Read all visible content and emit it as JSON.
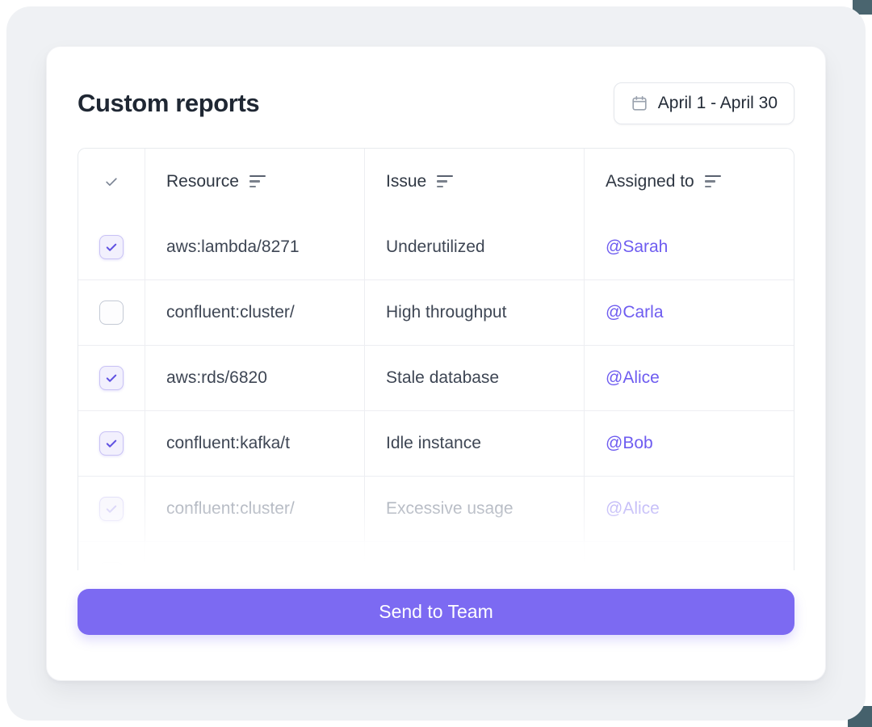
{
  "card": {
    "title": "Custom reports",
    "date_range": {
      "label": "April 1 - April 30",
      "icon": "calendar-icon"
    },
    "table": {
      "columns": [
        {
          "label": "",
          "icon": "check-icon"
        },
        {
          "label": "Resource",
          "icon": "sort-icon"
        },
        {
          "label": "Issue",
          "icon": "sort-icon"
        },
        {
          "label": "Assigned to",
          "icon": "sort-icon"
        }
      ],
      "rows": [
        {
          "checked": true,
          "resource": "aws:lambda/8271",
          "issue": "Underutilized",
          "assignee": "@Sarah",
          "faded": false
        },
        {
          "checked": false,
          "resource": "confluent:cluster/",
          "issue": "High throughput",
          "assignee": "@Carla",
          "faded": false
        },
        {
          "checked": true,
          "resource": "aws:rds/6820",
          "issue": "Stale database",
          "assignee": "@Alice",
          "faded": false
        },
        {
          "checked": true,
          "resource": "confluent:kafka/t",
          "issue": "Idle instance",
          "assignee": "@Bob",
          "faded": false
        },
        {
          "checked": true,
          "resource": "confluent:cluster/",
          "issue": "Excessive usage",
          "assignee": "@Alice",
          "faded": true
        }
      ],
      "partial_row_visible": true
    },
    "send_button": {
      "label": "Send to Team"
    }
  },
  "colors": {
    "accent_button": "#7c6af2",
    "mention": "#6e5cf0",
    "checkbox_check": "#6052e2",
    "checkbox_checked_border": "#c9c2f5",
    "checkbox_checked_bg": "#f2f0fd",
    "backdrop": "#eff1f4",
    "card_bg": "#ffffff",
    "table_border": "#e7eaee",
    "title_text": "#1f2733",
    "cell_text": "#3e4654",
    "faded_text": "#a6acb7",
    "dark_corner": "#4a656f"
  }
}
